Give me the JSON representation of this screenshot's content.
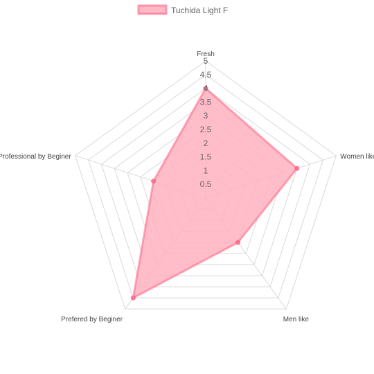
{
  "chart_data": {
    "type": "radar",
    "labels": [
      "Fresh",
      "Women like",
      "Men like",
      "Prefered by Beginer",
      "Professional by Beginer"
    ],
    "series": [
      {
        "name": "Tuchida Light F",
        "values": [
          4,
          3.5,
          2,
          4.5,
          2
        ],
        "fill_color": "#ffb1c1",
        "line_color": "#ff6384"
      }
    ],
    "r_min": 0,
    "r_max": 5,
    "tick_step": 0.5,
    "tick_labels": [
      "0.5",
      "1",
      "1.5",
      "2",
      "2.5",
      "3",
      "3.5",
      "4",
      "4.5",
      "5"
    ],
    "grid": true,
    "legend_position": "top"
  }
}
